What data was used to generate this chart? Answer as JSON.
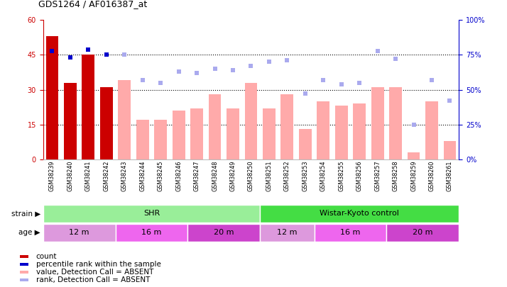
{
  "title": "GDS1264 / AF016387_at",
  "samples": [
    "GSM38239",
    "GSM38240",
    "GSM38241",
    "GSM38242",
    "GSM38243",
    "GSM38244",
    "GSM38245",
    "GSM38246",
    "GSM38247",
    "GSM38248",
    "GSM38249",
    "GSM38250",
    "GSM38251",
    "GSM38252",
    "GSM38253",
    "GSM38254",
    "GSM38255",
    "GSM38256",
    "GSM38257",
    "GSM38258",
    "GSM38259",
    "GSM38260",
    "GSM38261"
  ],
  "count_values": [
    53,
    33,
    45,
    31,
    null,
    null,
    null,
    null,
    null,
    null,
    null,
    null,
    null,
    null,
    null,
    null,
    null,
    null,
    null,
    null,
    null,
    null,
    null
  ],
  "percentile_rank": [
    78,
    73,
    79,
    75,
    null,
    null,
    null,
    null,
    null,
    null,
    null,
    null,
    null,
    null,
    null,
    null,
    null,
    null,
    null,
    null,
    null,
    null,
    null
  ],
  "value_absent": [
    null,
    null,
    null,
    null,
    34,
    17,
    17,
    21,
    22,
    28,
    22,
    33,
    22,
    28,
    13,
    25,
    23,
    24,
    31,
    31,
    3,
    25,
    8
  ],
  "rank_absent": [
    null,
    null,
    null,
    null,
    75,
    57,
    55,
    63,
    62,
    65,
    64,
    67,
    70,
    71,
    47,
    57,
    54,
    55,
    78,
    72,
    25,
    57,
    42
  ],
  "ylim_left": [
    0,
    60
  ],
  "ylim_right": [
    0,
    100
  ],
  "yticks_left": [
    0,
    15,
    30,
    45,
    60
  ],
  "yticks_right": [
    0,
    25,
    50,
    75,
    100
  ],
  "color_count": "#cc0000",
  "color_percentile": "#0000cc",
  "color_value_absent": "#ffaaaa",
  "color_rank_absent": "#aaaaee",
  "strain_groups": [
    {
      "label": "SHR",
      "start": 0,
      "end": 12,
      "color": "#99ee99"
    },
    {
      "label": "Wistar-Kyoto control",
      "start": 12,
      "end": 23,
      "color": "#44dd44"
    }
  ],
  "age_groups": [
    {
      "label": "12 m",
      "start": 0,
      "end": 4,
      "color": "#dd99dd"
    },
    {
      "label": "16 m",
      "start": 4,
      "end": 8,
      "color": "#ee66ee"
    },
    {
      "label": "20 m",
      "start": 8,
      "end": 12,
      "color": "#cc44cc"
    },
    {
      "label": "12 m",
      "start": 12,
      "end": 15,
      "color": "#dd99dd"
    },
    {
      "label": "16 m",
      "start": 15,
      "end": 19,
      "color": "#ee66ee"
    },
    {
      "label": "20 m",
      "start": 19,
      "end": 23,
      "color": "#cc44cc"
    }
  ],
  "legend_items": [
    {
      "color": "#cc0000",
      "label": "count",
      "type": "square"
    },
    {
      "color": "#0000cc",
      "label": "percentile rank within the sample",
      "type": "square"
    },
    {
      "color": "#ffaaaa",
      "label": "value, Detection Call = ABSENT",
      "type": "square"
    },
    {
      "color": "#aaaaee",
      "label": "rank, Detection Call = ABSENT",
      "type": "square"
    }
  ]
}
